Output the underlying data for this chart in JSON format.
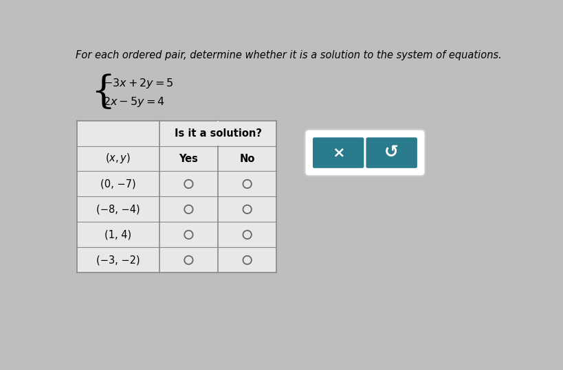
{
  "title": "For each ordered pair, determine whether it is a solution to the system of equations.",
  "equation1": "$-3x+2y=5$",
  "equation2": "$2x-5y=4$",
  "col_header_merged": "Is it a solution?",
  "col_xy": "$(x, y)$",
  "col_yes": "Yes",
  "col_no": "No",
  "rows": [
    "(0, −7)",
    "(−8, −4)",
    "(1, 4)",
    "(−3, −2)"
  ],
  "bg_color": "#bebebe",
  "table_bg": "#e8e8e8",
  "button_teal": "#2a7b8c",
  "title_fontsize": 10.5,
  "equation_fontsize": 11.5,
  "table_fontsize": 10.5
}
